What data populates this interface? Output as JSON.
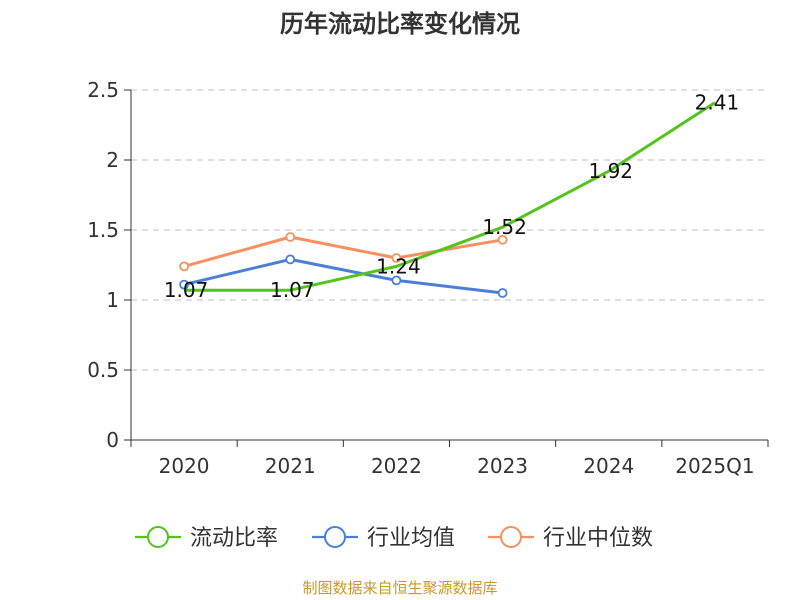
{
  "chart_data": {
    "type": "line",
    "title": "历年流动比率变化情况",
    "categories": [
      "2020",
      "2021",
      "2022",
      "2023",
      "2024",
      "2025Q1"
    ],
    "ylim": [
      0,
      2.5
    ],
    "yticks": [
      "0",
      "0.5",
      "1",
      "1.5",
      "2",
      "2.5"
    ],
    "grid": true,
    "legend_position": "bottom",
    "series": [
      {
        "name": "流动比率",
        "color": "#52c41a",
        "values": [
          1.07,
          1.07,
          1.24,
          1.52,
          1.92,
          2.41
        ],
        "labels": [
          "1.07",
          "1.07",
          "1.24",
          "1.52",
          "1.92",
          "2.41"
        ]
      },
      {
        "name": "行业均值",
        "color": "#4a7fd8",
        "values": [
          1.11,
          1.29,
          1.14,
          1.05,
          null,
          null
        ]
      },
      {
        "name": "行业中位数",
        "color": "#f59160",
        "values": [
          1.24,
          1.45,
          1.3,
          1.43,
          null,
          null
        ]
      }
    ],
    "source": "制图数据来自恒生聚源数据库"
  }
}
